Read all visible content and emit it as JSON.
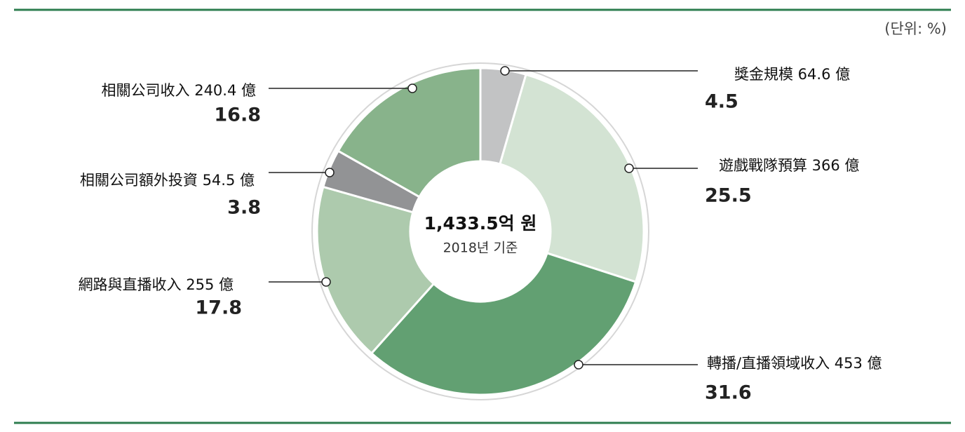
{
  "chart_data": {
    "type": "pie",
    "unit_note": "(단위: %)",
    "center_title": "1,433.5억 원",
    "center_subtitle": "2018년 기준",
    "categories": [
      "獎金規模 64.6 億",
      "遊戲戰隊預算 366 億",
      "轉播/直播領域收入 453 億",
      "網路與直播收入 255 億",
      "相關公司額外投資 54.5 億",
      "相關公司收入 240.4 億"
    ],
    "values": [
      4.5,
      25.5,
      31.6,
      17.8,
      3.8,
      16.8
    ],
    "colors": [
      "#c2c3c4",
      "#d3e3d3",
      "#62a072",
      "#adcaad",
      "#929395",
      "#88b38b"
    ]
  }
}
